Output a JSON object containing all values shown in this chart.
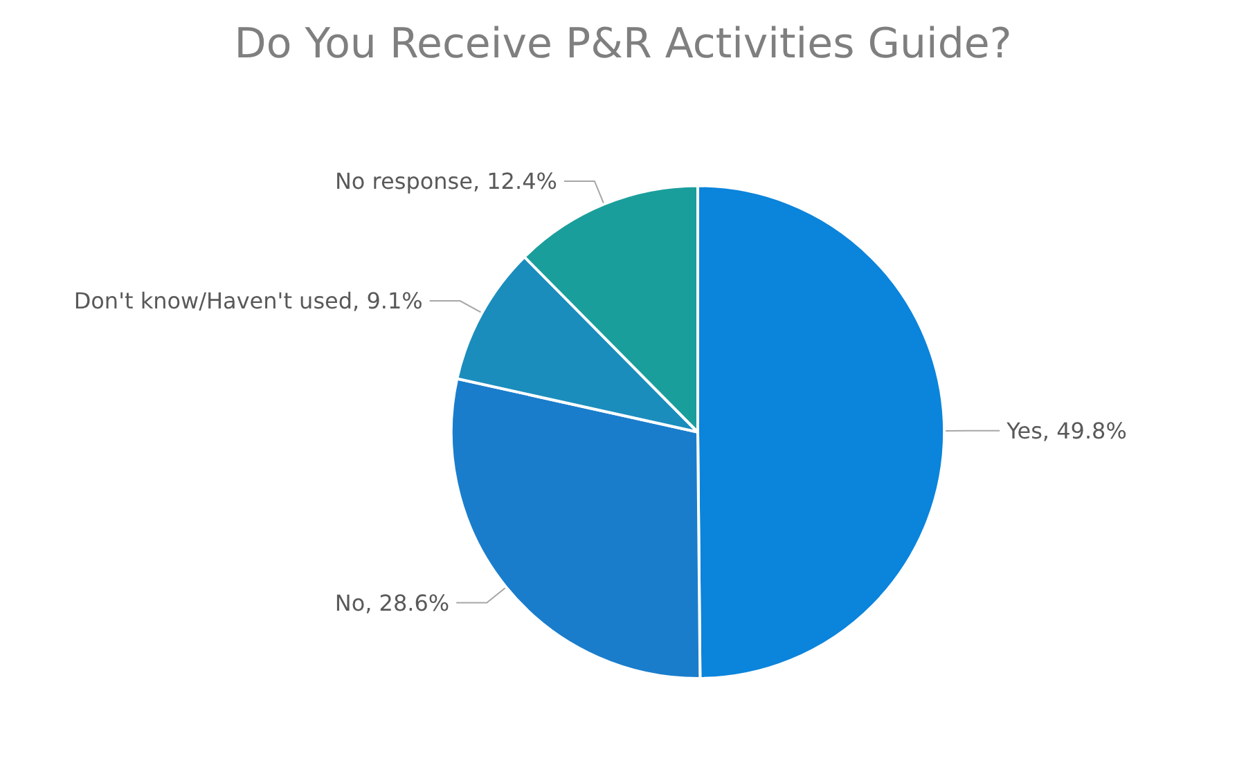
{
  "chart_data": {
    "type": "pie",
    "title": "Do You Receive P&R Activities Guide?",
    "categories": [
      "Yes",
      "No",
      "Don't know/Haven't used",
      "No response"
    ],
    "values": [
      49.8,
      28.6,
      9.1,
      12.4
    ],
    "value_labels": [
      "49.8%",
      "28.6%",
      "9.1%",
      "12.4%"
    ],
    "colors": [
      "#0b84dc",
      "#1a7dcc",
      "#1a8dbd",
      "#1a9e9b"
    ],
    "legend": false
  }
}
